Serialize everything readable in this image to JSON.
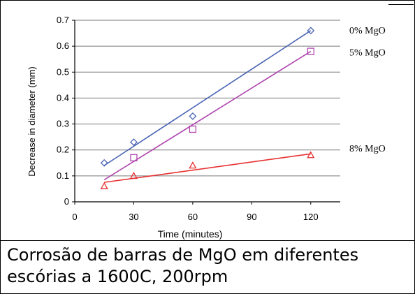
{
  "caption": "Corrosão de barras de MgO em diferentes escórias a 1600C, 200rpm",
  "cropped_header_fragment": "...",
  "chart_data": {
    "type": "scatter",
    "title": "",
    "xlabel": "Time (minutes)",
    "ylabel": "Decrease in diameter (mm)",
    "xlim": [
      0,
      135
    ],
    "ylim": [
      0,
      0.7
    ],
    "x_ticks": [
      "0",
      "30",
      "60",
      "90",
      "120"
    ],
    "y_ticks": [
      "0",
      "0.1",
      "0.2",
      "0.3",
      "0.4",
      "0.5",
      "0.6",
      "0.7"
    ],
    "grid": "horizontal",
    "series": [
      {
        "name": "0% MgO",
        "color": "#4a64b4",
        "marker": "diamond",
        "x": [
          15,
          30,
          60,
          120
        ],
        "y": [
          0.15,
          0.23,
          0.33,
          0.66
        ],
        "trend": {
          "x": [
            15,
            120
          ],
          "y": [
            0.14,
            0.66
          ]
        }
      },
      {
        "name": "5% MgO",
        "color": "#b048b0",
        "marker": "square",
        "x": [
          30,
          60,
          120
        ],
        "y": [
          0.17,
          0.28,
          0.58
        ],
        "trend": {
          "x": [
            15,
            120
          ],
          "y": [
            0.085,
            0.58
          ]
        }
      },
      {
        "name": "8% MgO",
        "color": "#e83030",
        "marker": "triangle",
        "x": [
          15,
          30,
          60,
          120
        ],
        "y": [
          0.06,
          0.1,
          0.14,
          0.18
        ],
        "trend": {
          "x": [
            15,
            120
          ],
          "y": [
            0.075,
            0.185
          ]
        }
      }
    ]
  }
}
